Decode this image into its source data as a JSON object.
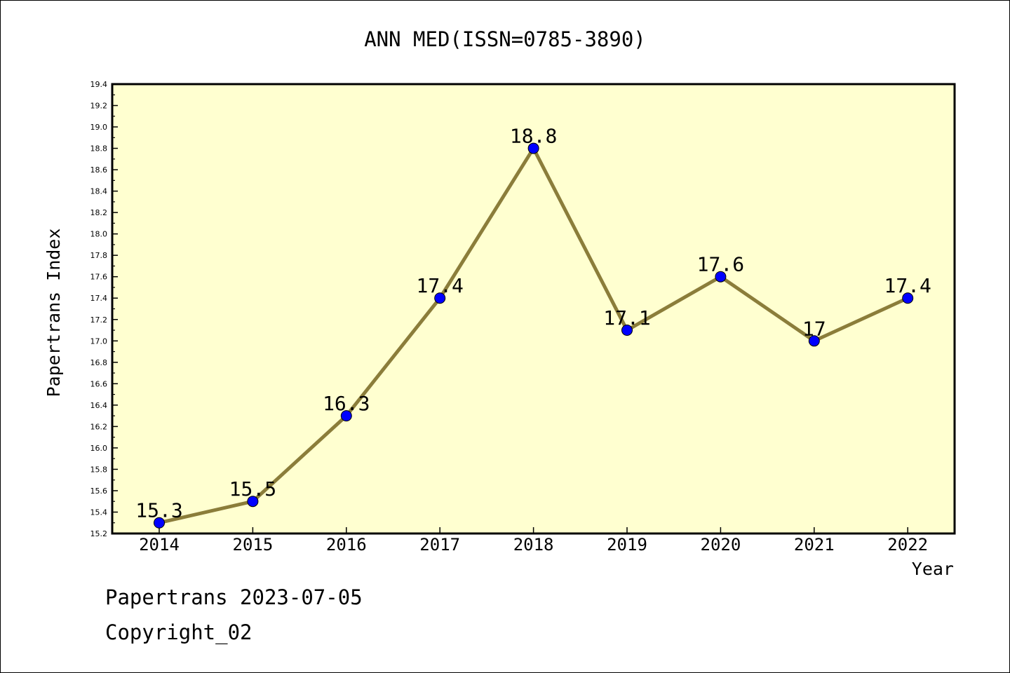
{
  "chart_data": {
    "type": "line",
    "title": "ANN MED(ISSN=0785-3890)",
    "xlabel": "Year",
    "ylabel": "Papertrans Index",
    "categories": [
      "2014",
      "2015",
      "2016",
      "2017",
      "2018",
      "2019",
      "2020",
      "2021",
      "2022"
    ],
    "series": [
      {
        "values": [
          15.3,
          15.5,
          16.3,
          17.4,
          18.8,
          17.1,
          17.6,
          17.0,
          17.4
        ],
        "labels": [
          "15.3",
          "15.5",
          "16.3",
          "17.4",
          "18.8",
          "17.1",
          "17.6",
          "17",
          "17.4"
        ]
      }
    ],
    "ylim": [
      15.2,
      19.4
    ],
    "yticks": [
      "15.2",
      "15.4",
      "15.6",
      "15.8",
      "16.0",
      "16.2",
      "16.4",
      "16.6",
      "16.8",
      "17.0",
      "17.2",
      "17.4",
      "17.6",
      "17.8",
      "18.0",
      "18.2",
      "18.4",
      "18.6",
      "18.8",
      "19.0",
      "19.2",
      "19.4"
    ],
    "grid": false,
    "colors": {
      "plot_background": "#ffffd0",
      "line": "#8b7d3a",
      "marker": "#0000ff"
    }
  },
  "footer": {
    "line1": "Papertrans 2023-07-05",
    "line2": "Copyright_02"
  }
}
